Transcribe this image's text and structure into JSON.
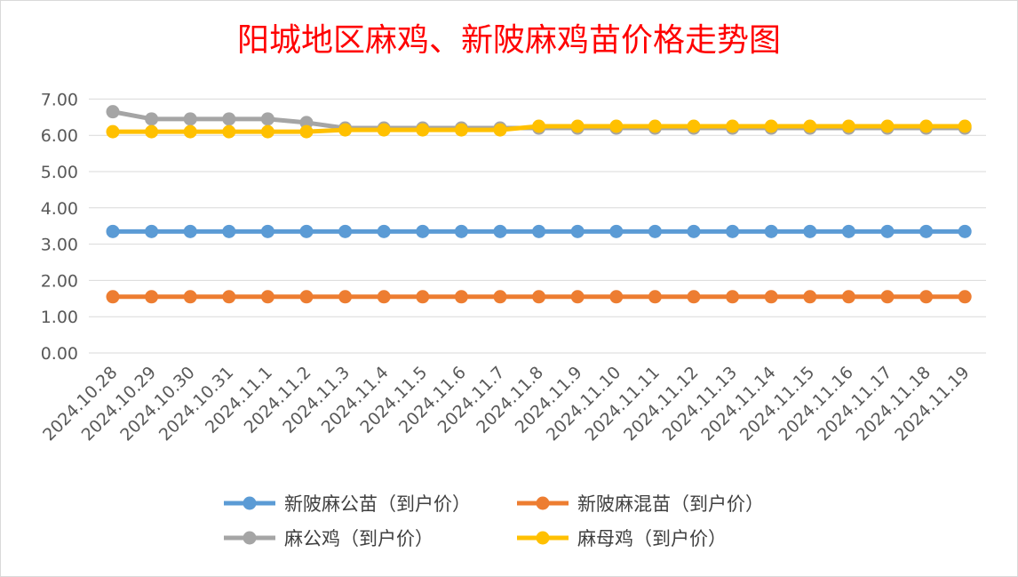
{
  "chart_data": {
    "type": "line",
    "title": "阳城地区麻鸡、新陂麻鸡苗价格走势图",
    "title_color": "#ff0000",
    "xlabel": "",
    "ylabel": "",
    "ylim": [
      0,
      7
    ],
    "y_ticks": [
      "0.00",
      "1.00",
      "2.00",
      "3.00",
      "4.00",
      "5.00",
      "6.00",
      "7.00"
    ],
    "grid": "horizontal",
    "legend_position": "bottom",
    "categories": [
      "2024.10.28",
      "2024.10.29",
      "2024.10.30",
      "2024.10.31",
      "2024.11.1",
      "2024.11.2",
      "2024.11.3",
      "2024.11.4",
      "2024.11.5",
      "2024.11.6",
      "2024.11.7",
      "2024.11.8",
      "2024.11.9",
      "2024.11.10",
      "2024.11.11",
      "2024.11.12",
      "2024.11.13",
      "2024.11.14",
      "2024.11.15",
      "2024.11.16",
      "2024.11.17",
      "2024.11.18",
      "2024.11.19"
    ],
    "series": [
      {
        "name": "新陂麻公苗（到户价）",
        "color": "#5b9bd5",
        "values": [
          3.35,
          3.35,
          3.35,
          3.35,
          3.35,
          3.35,
          3.35,
          3.35,
          3.35,
          3.35,
          3.35,
          3.35,
          3.35,
          3.35,
          3.35,
          3.35,
          3.35,
          3.35,
          3.35,
          3.35,
          3.35,
          3.35,
          3.35
        ]
      },
      {
        "name": "新陂麻混苗（到户价）",
        "color": "#ed7d31",
        "values": [
          1.55,
          1.55,
          1.55,
          1.55,
          1.55,
          1.55,
          1.55,
          1.55,
          1.55,
          1.55,
          1.55,
          1.55,
          1.55,
          1.55,
          1.55,
          1.55,
          1.55,
          1.55,
          1.55,
          1.55,
          1.55,
          1.55,
          1.55
        ]
      },
      {
        "name": "麻公鸡（到户价）",
        "color": "#a5a5a5",
        "values": [
          6.65,
          6.45,
          6.45,
          6.45,
          6.45,
          6.35,
          6.2,
          6.2,
          6.2,
          6.2,
          6.2,
          6.2,
          6.2,
          6.2,
          6.2,
          6.2,
          6.2,
          6.2,
          6.2,
          6.2,
          6.2,
          6.2,
          6.2
        ]
      },
      {
        "name": "麻母鸡（到户价）",
        "color": "#ffc000",
        "values": [
          6.1,
          6.1,
          6.1,
          6.1,
          6.1,
          6.1,
          6.15,
          6.15,
          6.15,
          6.15,
          6.15,
          6.25,
          6.25,
          6.25,
          6.25,
          6.25,
          6.25,
          6.25,
          6.25,
          6.25,
          6.25,
          6.25,
          6.25
        ]
      }
    ]
  }
}
